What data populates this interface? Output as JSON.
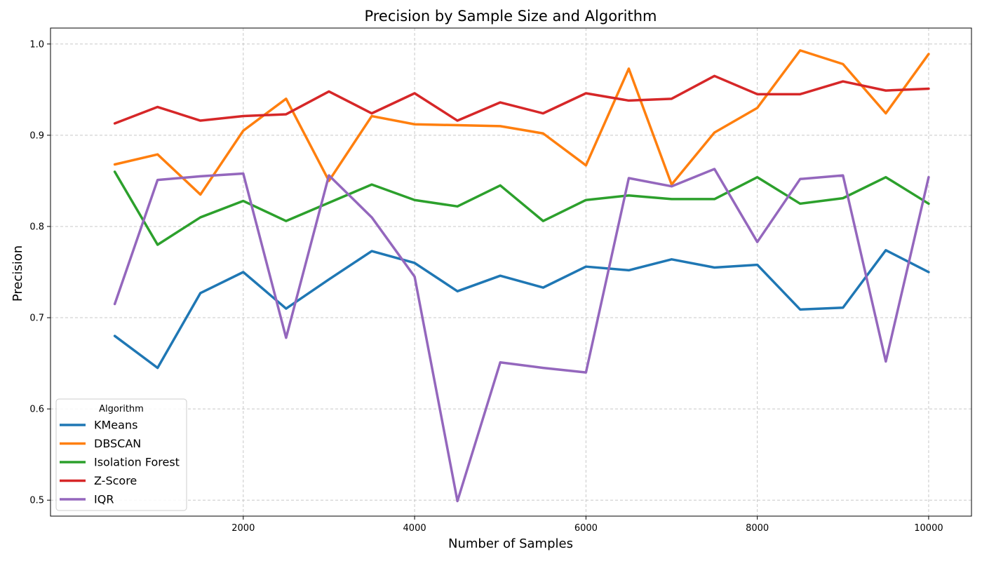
{
  "chart_data": {
    "type": "line",
    "title": "Precision by Sample Size and Algorithm",
    "xlabel": "Number of Samples",
    "ylabel": "Precision",
    "x": [
      500,
      1000,
      1500,
      2000,
      2500,
      3000,
      3500,
      4000,
      4500,
      5000,
      5500,
      6000,
      6500,
      7000,
      7500,
      8000,
      8500,
      9000,
      9500,
      10000
    ],
    "xlim": [
      -250,
      10500
    ],
    "ylim": [
      0.4825,
      1.0175
    ],
    "xticks": [
      2000,
      4000,
      6000,
      8000,
      10000
    ],
    "yticks": [
      0.5,
      0.6,
      0.7,
      0.8,
      0.9,
      1.0
    ],
    "xtick_labels": [
      "2000",
      "4000",
      "6000",
      "8000",
      "10000"
    ],
    "ytick_labels": [
      "0.5",
      "0.6",
      "0.7",
      "0.8",
      "0.9",
      "1.0"
    ],
    "grid": true,
    "legend": {
      "title": "Algorithm",
      "position": "lower-left"
    },
    "series": [
      {
        "name": "KMeans",
        "color": "#1f77b4",
        "values": [
          0.68,
          0.645,
          0.727,
          0.75,
          0.71,
          0.742,
          0.773,
          0.76,
          0.729,
          0.746,
          0.733,
          0.756,
          0.752,
          0.764,
          0.755,
          0.758,
          0.709,
          0.711,
          0.774,
          0.75
        ]
      },
      {
        "name": "DBSCAN",
        "color": "#ff7f0e",
        "values": [
          0.868,
          0.879,
          0.835,
          0.905,
          0.94,
          0.85,
          0.921,
          0.912,
          0.911,
          0.91,
          0.902,
          0.867,
          0.973,
          0.846,
          0.903,
          0.93,
          0.993,
          0.978,
          0.924,
          0.989
        ]
      },
      {
        "name": "Isolation Forest",
        "color": "#2ca02c",
        "values": [
          0.86,
          0.78,
          0.81,
          0.828,
          0.806,
          0.826,
          0.846,
          0.829,
          0.822,
          0.845,
          0.806,
          0.829,
          0.834,
          0.83,
          0.83,
          0.854,
          0.825,
          0.831,
          0.854,
          0.825
        ]
      },
      {
        "name": "Z-Score",
        "color": "#d62728",
        "values": [
          0.913,
          0.931,
          0.916,
          0.921,
          0.923,
          0.948,
          0.924,
          0.946,
          0.916,
          0.936,
          0.924,
          0.946,
          0.938,
          0.94,
          0.965,
          0.945,
          0.945,
          0.959,
          0.949,
          0.951
        ]
      },
      {
        "name": "IQR",
        "color": "#9467bd",
        "values": [
          0.715,
          0.851,
          0.855,
          0.858,
          0.678,
          0.856,
          0.81,
          0.745,
          0.499,
          0.651,
          0.645,
          0.64,
          0.853,
          0.844,
          0.863,
          0.783,
          0.852,
          0.856,
          0.652,
          0.854
        ]
      }
    ]
  }
}
